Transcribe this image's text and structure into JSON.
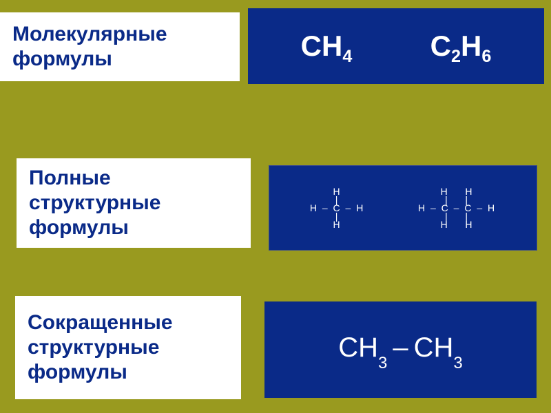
{
  "colors": {
    "background": "#999a1f",
    "panel_blue": "#0a2a88",
    "panel_blue_light": "#1c3ca0",
    "white": "#ffffff",
    "label_text": "#0a2a88",
    "formula_text": "#ffffff"
  },
  "row1": {
    "label_line1": "Молекулярные",
    "label_line2": "формулы",
    "formula1": {
      "parts": [
        "CH",
        "4"
      ]
    },
    "formula2": {
      "parts": [
        "C",
        "2",
        "H",
        "6"
      ]
    }
  },
  "row2": {
    "label_line1": "Полные",
    "label_line2": "структурные",
    "label_line3": "формулы",
    "methane": {
      "top": "H",
      "mid": "H – C – H",
      "bot": "H",
      "vbar": "|"
    },
    "ethane": {
      "top": "H    H",
      "mid": "H – C – C – H",
      "bot": "H    H",
      "vbar": "|    |"
    }
  },
  "row3": {
    "label_line1": "Сокращенные",
    "label_line2": "структурные",
    "label_line3": "формулы",
    "condensed_left": "CH",
    "condensed_left_sub": "3",
    "dash": "–",
    "condensed_right": "CH",
    "condensed_right_sub": "3"
  },
  "style": {
    "label_fontsize": 30,
    "formula_fontsize": 42,
    "struct_fontsize": 14,
    "condensed_fontsize": 40
  }
}
